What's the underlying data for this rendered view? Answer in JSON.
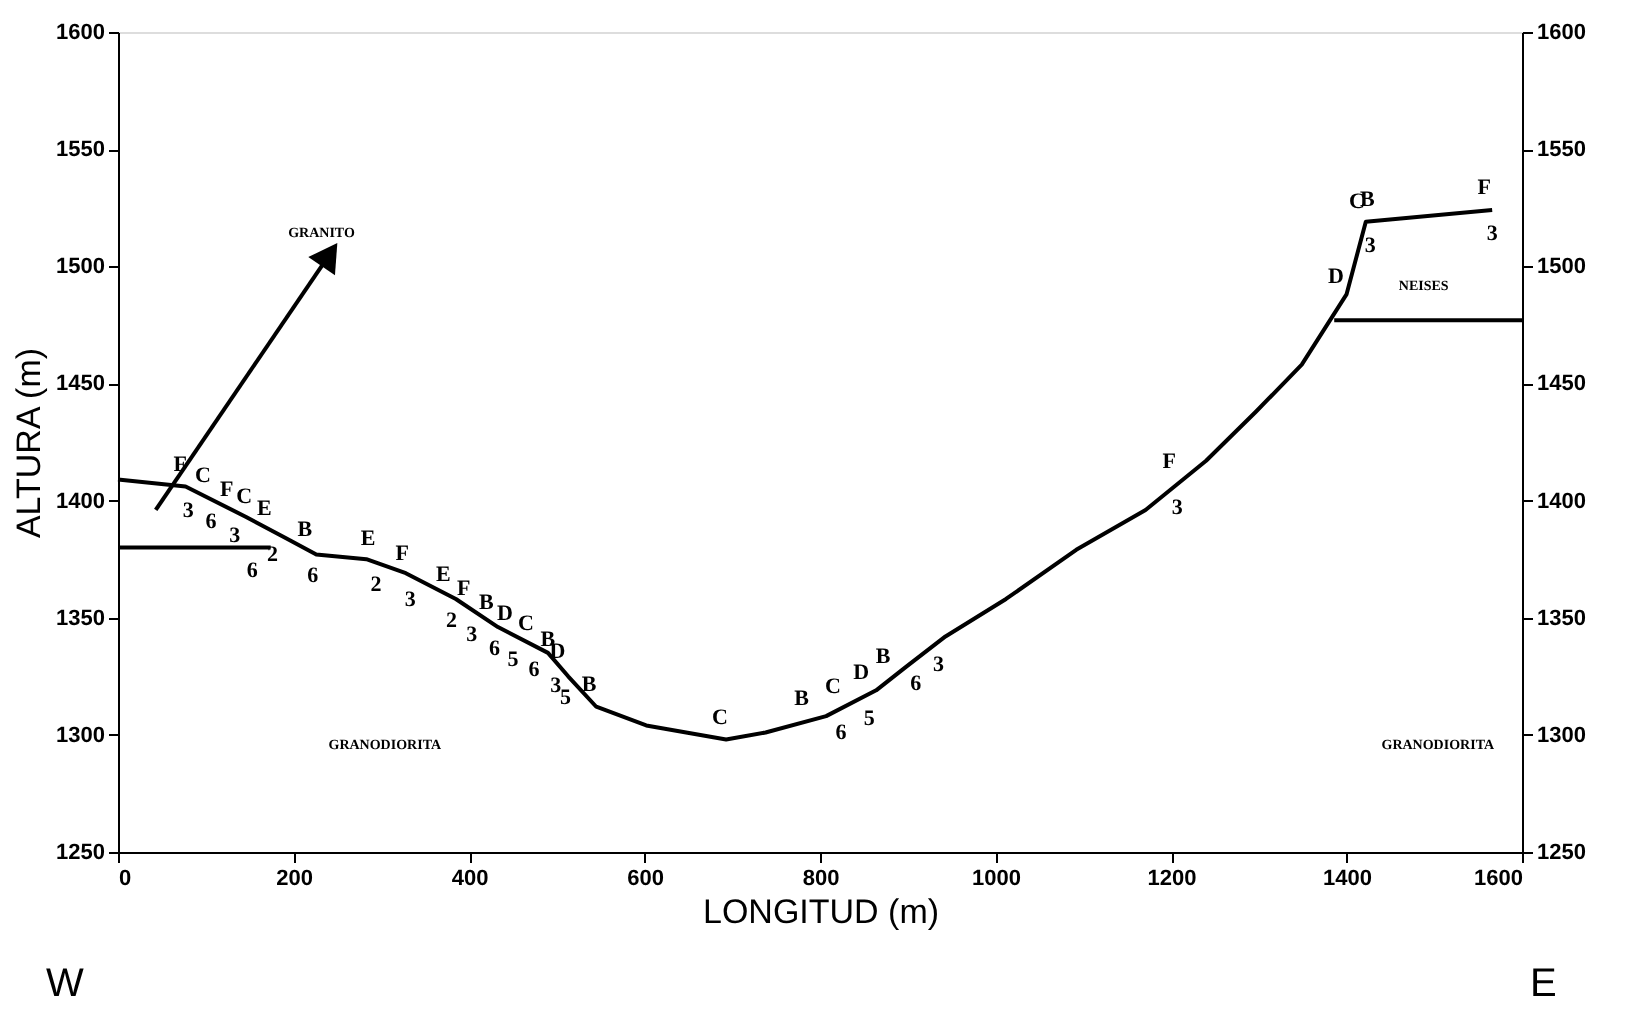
{
  "chart_data": {
    "type": "line",
    "xlabel": "LONGITUD (m)",
    "ylabel": "ALTURA (m)",
    "xlim": [
      0,
      1600
    ],
    "xticks": [
      0,
      200,
      400,
      600,
      800,
      1000,
      1200,
      1400,
      1600
    ],
    "ylim": [
      1250,
      1600
    ],
    "yticks": [
      1250,
      1300,
      1350,
      1400,
      1450,
      1500,
      1550,
      1600
    ],
    "y2lim": [
      1250,
      1600
    ],
    "y2ticks": [
      1250,
      1300,
      1350,
      1400,
      1450,
      1500,
      1550,
      1600
    ],
    "grid": false,
    "marker": "none",
    "line_style": "solid",
    "series": [
      {
        "color": "#000000",
        "x": [
          0,
          77,
          146,
          191,
          226,
          283,
          328,
          385,
          433,
          490,
          513,
          545,
          602,
          693,
          738,
          807,
          864,
          898,
          943,
          1012,
          1092,
          1171,
          1240,
          1297,
          1349,
          1400,
          1422,
          1566
        ],
        "values": [
          1409,
          1406,
          1393,
          1384,
          1377,
          1375,
          1369,
          1358,
          1346,
          1335,
          1325,
          1312,
          1304,
          1298,
          1301,
          1308,
          1319,
          1329,
          1342,
          1358,
          1379,
          1396,
          1417,
          1438,
          1458,
          1488,
          1519,
          1524
        ]
      },
      {
        "color": "#000000",
        "x": [
          0,
          174
        ],
        "values": [
          1380,
          1380
        ]
      },
      {
        "color": "#000000",
        "axis": "y2",
        "x": [
          1386,
          1600
        ],
        "values": [
          1477,
          1477
        ]
      },
      {
        "color": "#000000",
        "marker": "triangle",
        "x": [
          43,
          241
        ],
        "values": [
          1396,
          1505
        ]
      }
    ],
    "annotations": [
      {
        "text": "GRANITO",
        "x": 241,
        "y": 1505
      },
      {
        "text": "F",
        "x": 80,
        "y": 1406
      },
      {
        "text": "3",
        "x": 80,
        "y": 1406
      },
      {
        "text": "C",
        "x": 106,
        "y": 1401
      },
      {
        "text": "6",
        "x": 106,
        "y": 1401
      },
      {
        "text": "F",
        "x": 133,
        "y": 1395
      },
      {
        "text": "3",
        "x": 133,
        "y": 1395
      },
      {
        "text": "C",
        "x": 153,
        "y": 1392
      },
      {
        "text": "6",
        "x": 153,
        "y": 1380
      },
      {
        "text": "E",
        "x": 176,
        "y": 1387
      },
      {
        "text": "2",
        "x": 176,
        "y": 1387
      },
      {
        "text": "B",
        "x": 222,
        "y": 1378
      },
      {
        "text": "6",
        "x": 222,
        "y": 1378
      },
      {
        "text": "E",
        "x": 294,
        "y": 1374
      },
      {
        "text": "2",
        "x": 294,
        "y": 1374
      },
      {
        "text": "F",
        "x": 333,
        "y": 1368
      },
      {
        "text": "3",
        "x": 333,
        "y": 1368
      },
      {
        "text": "E",
        "x": 380,
        "y": 1359
      },
      {
        "text": "2",
        "x": 380,
        "y": 1359
      },
      {
        "text": "F",
        "x": 403,
        "y": 1353
      },
      {
        "text": "3",
        "x": 403,
        "y": 1353
      },
      {
        "text": "B",
        "x": 429,
        "y": 1347
      },
      {
        "text": "6",
        "x": 429,
        "y": 1347
      },
      {
        "text": "D",
        "x": 450,
        "y": 1342
      },
      {
        "text": "5",
        "x": 450,
        "y": 1342
      },
      {
        "text": "C",
        "x": 474,
        "y": 1338
      },
      {
        "text": "6",
        "x": 474,
        "y": 1338
      },
      {
        "text": "B",
        "x": 499,
        "y": 1331
      },
      {
        "text": "3",
        "x": 499,
        "y": 1331
      },
      {
        "text": "D",
        "x": 510,
        "y": 1326
      },
      {
        "text": "5",
        "x": 510,
        "y": 1326
      },
      {
        "text": "B",
        "x": 546,
        "y": 1312
      },
      {
        "text": "C",
        "x": 695,
        "y": 1298
      },
      {
        "text": "B",
        "x": 788,
        "y": 1306
      },
      {
        "text": "C",
        "x": 824,
        "y": 1311
      },
      {
        "text": "6",
        "x": 824,
        "y": 1311
      },
      {
        "text": "D",
        "x": 856,
        "y": 1317
      },
      {
        "text": "5",
        "x": 856,
        "y": 1317
      },
      {
        "text": "B",
        "x": 881,
        "y": 1324
      },
      {
        "text": "6",
        "x": 909,
        "y": 1332
      },
      {
        "text": "3",
        "x": 935,
        "y": 1340
      },
      {
        "text": "F",
        "x": 1207,
        "y": 1407
      },
      {
        "text": "3",
        "x": 1207,
        "y": 1407
      },
      {
        "text": "D",
        "x": 1397,
        "y": 1486
      },
      {
        "text": "C",
        "x": 1421,
        "y": 1518
      },
      {
        "text": "B",
        "x": 1433,
        "y": 1519
      },
      {
        "text": "3",
        "x": 1427,
        "y": 1519
      },
      {
        "text": "F",
        "x": 1566,
        "y": 1524
      },
      {
        "text": "3",
        "x": 1566,
        "y": 1524
      },
      "GRANODIORITA",
      "GRANODIORITA",
      "NEISES",
      "W",
      "E"
    ]
  }
}
